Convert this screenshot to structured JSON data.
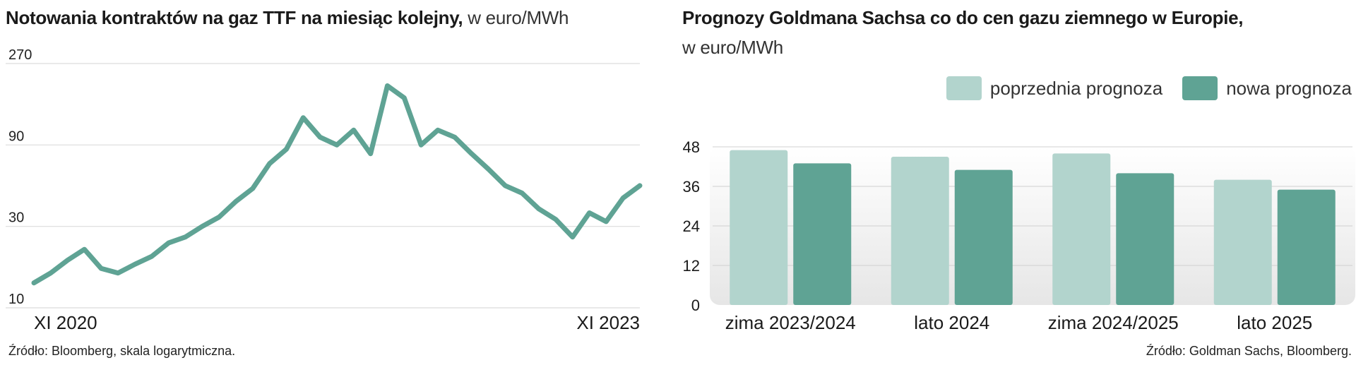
{
  "left_chart": {
    "title_bold": "Notowania kontraktów na gaz TTF na miesiąc kolejny,",
    "title_light": " w euro/MWh",
    "source": "Źródło: Bloomberg, skala logarytmiczna."
  },
  "right_chart": {
    "title_bold": "Prognozy Goldmana Sachsa co do cen gazu ziemnego w Europie,",
    "title_light": "w euro/MWh",
    "source": "Źródło: Goldman Sachs, Bloomberg."
  },
  "colors": {
    "line": "#5fa394",
    "bar_old": "#b2d4cd",
    "bar_new": "#5fa394",
    "grid": "#dcdcdc"
  },
  "chart_data": [
    {
      "type": "line",
      "scale": "log",
      "ylim": [
        10,
        270
      ],
      "yticks": [
        10,
        30,
        90,
        270
      ],
      "ytick_labels": [
        "10",
        "30",
        "90",
        "270"
      ],
      "x_labels": [
        "XI 2020",
        "XI 2023"
      ],
      "grid": true,
      "x": [
        "2020-11",
        "2020-12",
        "2021-01",
        "2021-02",
        "2021-03",
        "2021-04",
        "2021-05",
        "2021-06",
        "2021-07",
        "2021-08",
        "2021-09",
        "2021-10",
        "2021-11",
        "2021-12",
        "2022-01",
        "2022-02",
        "2022-03",
        "2022-04",
        "2022-05",
        "2022-06",
        "2022-07",
        "2022-08",
        "2022-09",
        "2022-10",
        "2022-11",
        "2022-12",
        "2023-01",
        "2023-02",
        "2023-03",
        "2023-04",
        "2023-05",
        "2023-06",
        "2023-07",
        "2023-08",
        "2023-09",
        "2023-10",
        "2023-11"
      ],
      "values": [
        14,
        16,
        19,
        22,
        17,
        16,
        18,
        20,
        24,
        26,
        30,
        34,
        42,
        50,
        70,
        85,
        130,
        100,
        90,
        110,
        80,
        200,
        170,
        90,
        110,
        100,
        80,
        65,
        52,
        47,
        38,
        33,
        26,
        36,
        32,
        44,
        52
      ]
    },
    {
      "type": "bar",
      "categories": [
        "zima 2023/2024",
        "lato 2024",
        "zima 2024/2025",
        "lato 2025"
      ],
      "series": [
        {
          "name": "poprzednia prognoza",
          "values": [
            47,
            45,
            46,
            38
          ]
        },
        {
          "name": "nowa prognoza",
          "values": [
            43,
            41,
            40,
            35
          ]
        }
      ],
      "ylim": [
        0,
        48
      ],
      "yticks": [
        0,
        12,
        24,
        36,
        48
      ],
      "legend": "top-right",
      "grid": true
    }
  ]
}
